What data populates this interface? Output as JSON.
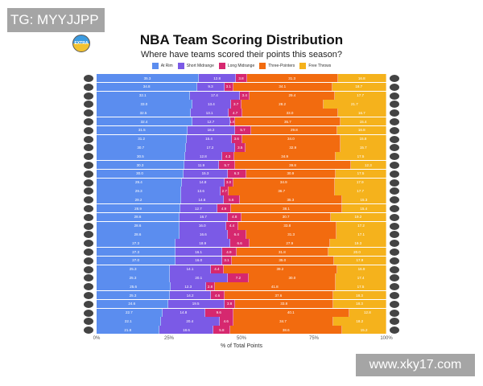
{
  "watermarks": {
    "top_left": "TG: MYYJJPP",
    "bottom_right": "www.xky17.com"
  },
  "logo_text": "EXTRA",
  "chart_data": {
    "type": "bar",
    "orientation": "horizontal-stacked-100",
    "title": "NBA Team Scoring Distribution",
    "subtitle": "Where have teams scored their points this season?",
    "xlabel": "% of Total Points",
    "ylabel": "",
    "xlim": [
      0,
      100
    ],
    "xticks": [
      "0%",
      "25%",
      "50%",
      "75%",
      "100%"
    ],
    "legend": [
      "At Rim",
      "Short Midrange",
      "Long Midrange",
      "Three-Pointers",
      "Free Throws"
    ],
    "legend_position": "top",
    "colors": [
      "#5b8def",
      "#7b5ae6",
      "#d6286f",
      "#f26b0f",
      "#f5b21c"
    ],
    "series": [
      {
        "name": "At Rim",
        "values": [
          35.3,
          34.8,
          32.1,
          33.0,
          32.5,
          32.4,
          31.5,
          31.2,
          30.7,
          30.5,
          30.3,
          30.0,
          29.4,
          29.3,
          29.2,
          28.9,
          28.6,
          28.6,
          28.6,
          27.3,
          27.3,
          27.0,
          25.3,
          25.3,
          25.6,
          25.3,
          24.6,
          22.7,
          22.1,
          21.8
        ]
      },
      {
        "name": "Short Midrange",
        "values": [
          12.8,
          9.3,
          17.4,
          13.4,
          13.1,
          12.7,
          16.2,
          15.4,
          17.2,
          12.8,
          11.9,
          15.3,
          14.8,
          13.6,
          14.6,
          12.7,
          16.7,
          16.0,
          16.6,
          18.9,
          16.1,
          16.0,
          14.1,
          20.1,
          12.3,
          14.2,
          19.5,
          14.8,
          20.4,
          18.6
        ]
      },
      {
        "name": "Long Midrange",
        "values": [
          3.8,
          3.1,
          3.4,
          3.7,
          4.7,
          1.8,
          5.7,
          3.6,
          3.5,
          4.3,
          5.7,
          6.3,
          3.0,
          2.7,
          5.6,
          4.9,
          4.8,
          4.4,
          6.4,
          6.6,
          4.9,
          3.1,
          4.4,
          7.2,
          2.8,
          4.6,
          3.8,
          9.6,
          4.6,
          5.8
        ]
      },
      {
        "name": "Three-Pointers",
        "values": [
          31.3,
          34.1,
          29.4,
          28.2,
          33.0,
          35.7,
          29.8,
          34.0,
          32.9,
          34.9,
          39.8,
          30.9,
          34.9,
          36.7,
          35.3,
          38.1,
          30.7,
          33.8,
          31.3,
          27.9,
          31.8,
          35.0,
          39.2,
          30.0,
          41.8,
          37.6,
          33.8,
          40.1,
          34.7,
          38.6
        ]
      },
      {
        "name": "Free Throws",
        "values": [
          16.8,
          18.7,
          17.7,
          21.7,
          16.7,
          15.4,
          16.8,
          15.8,
          15.7,
          17.5,
          12.3,
          17.5,
          17.9,
          17.7,
          15.3,
          15.4,
          19.2,
          17.2,
          17.1,
          19.3,
          20.0,
          17.9,
          16.9,
          17.4,
          17.5,
          18.3,
          18.3,
          12.8,
          18.2,
          15.2
        ]
      }
    ],
    "grid": false
  }
}
